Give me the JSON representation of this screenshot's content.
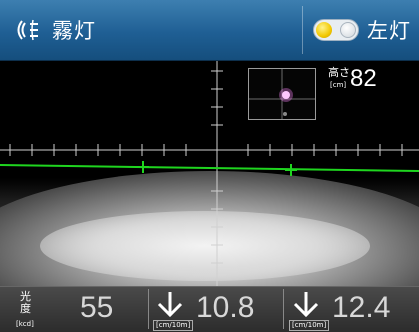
{
  "header": {
    "fog_icon": "fog-light-icon",
    "title": "霧灯",
    "side_toggle_icon": "toggle-switch-icon",
    "side_label": "左灯"
  },
  "camera": {
    "height_label": "高さ",
    "height_unit": "[cm]",
    "height_value": "82"
  },
  "bottom": {
    "luminosity_label": "光度",
    "luminosity_unit": "[kcd]",
    "luminosity_value": "55",
    "metrics": [
      {
        "icon": "arrow-down-icon",
        "unit": "[cm/10m]",
        "value": "10.8"
      },
      {
        "icon": "arrow-down-icon",
        "unit": "[cm/10m]",
        "value": "12.4"
      }
    ]
  },
  "colors": {
    "header": "#1f5f94",
    "cutoff_line": "#1fd51f",
    "toggle_on": "#f2c800"
  }
}
